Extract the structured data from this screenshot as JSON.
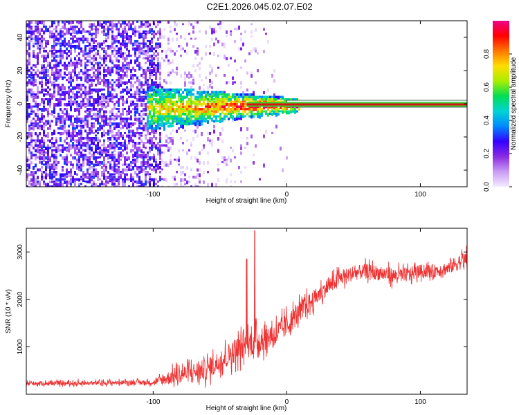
{
  "figure_title": "C2E1.2026.045.02.07.E02",
  "colors": {
    "snr_line": "#ee3333",
    "band_red": "#dd1111",
    "band_green": "#33cc33",
    "axis": "#000000"
  },
  "chart_data": [
    {
      "type": "heatmap",
      "title": "",
      "xlabel": "Height of straight line (km)",
      "ylabel": "Frequency (Hz)",
      "xlim": [
        -195,
        135
      ],
      "ylim": [
        -50,
        50
      ],
      "x_ticks": [
        -100,
        0,
        100
      ],
      "x_tick_labels": [
        "-100",
        "0",
        "100"
      ],
      "y_ticks": [
        -40,
        -20,
        0,
        20,
        40
      ],
      "y_tick_labels": [
        "-40",
        "-20",
        "0",
        "20",
        "40"
      ],
      "colorbar": {
        "label": "Normalized spectral amplitude",
        "range": [
          0,
          1
        ],
        "ticks": [
          0.0,
          0.2,
          0.4,
          0.6,
          0.8
        ],
        "tick_labels": [
          "0.0",
          "0.2",
          "0.4",
          "0.6",
          "0.8"
        ],
        "colormap": [
          "#f3ecff",
          "#c99cf5",
          "#8a2be2",
          "#3300ff",
          "#0088ff",
          "#00d4d4",
          "#00dd55",
          "#aaee00",
          "#ffdd00",
          "#ff7700",
          "#ff0000",
          "#ee0088"
        ]
      },
      "regions": [
        {
          "description": "broadband noise",
          "x_range": [
            -195,
            -95
          ],
          "freq_range": [
            -50,
            50
          ],
          "amplitude": 0.2
        },
        {
          "description": "sparse noise",
          "x_range": [
            -95,
            0
          ],
          "freq_range": [
            -50,
            50
          ],
          "amplitude": 0.08
        },
        {
          "description": "signal spread",
          "x_range": [
            -105,
            10
          ],
          "freq_range": [
            -12,
            10
          ],
          "amplitude": 0.35
        },
        {
          "description": "narrow signal line",
          "x_range": [
            -30,
            135
          ],
          "freq_center": 0,
          "amplitude": 0.97
        }
      ]
    },
    {
      "type": "line",
      "title": "",
      "xlabel": "Height of straight line (km)",
      "ylabel": "SNR (10 * v/v)",
      "xlim": [
        -195,
        135
      ],
      "ylim": [
        0,
        3500
      ],
      "x_ticks": [
        -100,
        0,
        100
      ],
      "x_tick_labels": [
        "-100",
        "0",
        "100"
      ],
      "y_ticks": [
        1000,
        2000,
        3000
      ],
      "y_tick_labels": [
        "1000",
        "2000",
        "3000"
      ],
      "series": [
        {
          "name": "SNR",
          "x": [
            -195,
            -160,
            -120,
            -100,
            -90,
            -80,
            -60,
            -50,
            -40,
            -30,
            -20,
            -10,
            0,
            10,
            20,
            30,
            40,
            50,
            60,
            70,
            80,
            90,
            100,
            110,
            120,
            130,
            135
          ],
          "y": [
            230,
            230,
            250,
            250,
            330,
            420,
            520,
            700,
            900,
            1050,
            1150,
            1250,
            1450,
            1750,
            2000,
            2250,
            2450,
            2550,
            2600,
            2550,
            2500,
            2520,
            2600,
            2600,
            2650,
            2800,
            2850
          ],
          "spread": [
            80,
            80,
            80,
            90,
            250,
            330,
            400,
            420,
            480,
            520,
            500,
            450,
            450,
            400,
            350,
            300,
            300,
            280,
            280,
            280,
            280,
            280,
            250,
            250,
            250,
            300,
            300
          ]
        }
      ],
      "peaks": [
        {
          "x": -24,
          "y": 3450
        },
        {
          "x": -30,
          "y": 2850
        }
      ]
    }
  ]
}
